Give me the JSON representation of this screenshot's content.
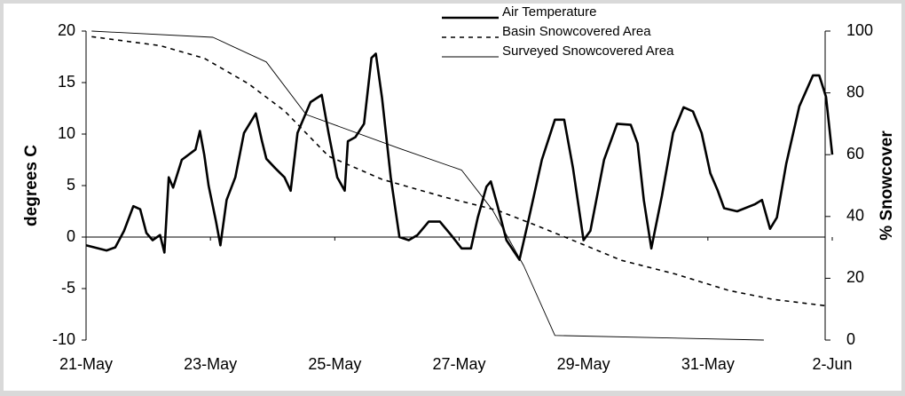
{
  "chart_data": {
    "type": "line",
    "ylabel": "degrees C",
    "y2label": "% Snowcover",
    "xlim": [
      0,
      12
    ],
    "xticks": [
      {
        "value": 0,
        "label": "21-May"
      },
      {
        "value": 2,
        "label": "23-May"
      },
      {
        "value": 4,
        "label": "25-May"
      },
      {
        "value": 6,
        "label": "27-May"
      },
      {
        "value": 8,
        "label": "29-May"
      },
      {
        "value": 10,
        "label": "31-May"
      },
      {
        "value": 12,
        "label": "2-Jun"
      }
    ],
    "ylim": [
      -10,
      20
    ],
    "yticks": [
      -10,
      -5,
      0,
      5,
      10,
      15,
      20
    ],
    "y2lim": [
      0,
      100
    ],
    "y2ticks": [
      0,
      20,
      40,
      60,
      80,
      100
    ],
    "legend": "top",
    "series": [
      {
        "name": "Air Temperature",
        "color": "#000000",
        "style": "solid",
        "width": 2.6,
        "x": [
          0,
          0.33,
          0.47,
          0.61,
          0.76,
          0.87,
          0.97,
          1.07,
          1.19,
          1.26,
          1.33,
          1.4,
          1.54,
          1.76,
          1.83,
          1.9,
          1.97,
          2.09,
          2.16,
          2.26,
          2.4,
          2.54,
          2.73,
          2.83,
          2.9,
          3.04,
          3.19,
          3.29,
          3.4,
          3.61,
          3.79,
          3.9,
          4.04,
          4.16,
          4.21,
          4.33,
          4.47,
          4.59,
          4.66,
          4.76,
          4.9,
          5.04,
          5.19,
          5.33,
          5.51,
          5.69,
          5.87,
          6.04,
          6.19,
          6.3,
          6.44,
          6.51,
          6.61,
          6.76,
          6.97,
          7.11,
          7.33,
          7.54,
          7.69,
          7.83,
          8.0,
          8.11,
          8.33,
          8.54,
          8.76,
          8.87,
          8.97,
          9.09,
          9.26,
          9.44,
          9.61,
          9.76,
          9.9,
          10.04,
          10.16,
          10.26,
          10.47,
          10.76,
          10.87,
          11.0,
          11.11,
          11.26,
          11.47,
          11.69,
          11.79,
          11.9,
          12.0
        ],
        "values": [
          -0.8,
          -1.3,
          -1.0,
          0.6,
          3.0,
          2.7,
          0.4,
          -0.3,
          0.2,
          -1.5,
          5.8,
          4.8,
          7.5,
          8.5,
          10.3,
          8.0,
          5.0,
          1.5,
          -0.8,
          3.6,
          5.8,
          10.1,
          12.0,
          9.3,
          7.6,
          6.7,
          5.8,
          4.5,
          10.1,
          13.1,
          13.8,
          10.1,
          5.8,
          4.5,
          9.3,
          9.7,
          11.0,
          17.4,
          17.8,
          13.5,
          5.8,
          0,
          -0.3,
          0.2,
          1.5,
          1.5,
          0.2,
          -1.1,
          -1.1,
          1.9,
          4.9,
          5.4,
          3.2,
          -0.3,
          -2.2,
          1.5,
          7.5,
          11.4,
          11.4,
          6.7,
          -0.3,
          0.6,
          7.5,
          11.0,
          10.9,
          9.1,
          3.6,
          -1.1,
          4.0,
          10.1,
          12.6,
          12.2,
          10.1,
          6.2,
          4.5,
          2.8,
          2.5,
          3.2,
          3.6,
          0.8,
          1.9,
          7.1,
          12.7,
          15.7,
          15.7,
          13.6,
          8.0
        ]
      },
      {
        "name": "Basin Snowcovered Area",
        "color": "#000000",
        "style": "dashed",
        "width": 1.6,
        "axis": "y2",
        "x": [
          0.09,
          1.19,
          1.9,
          2.61,
          3.19,
          3.9,
          4.76,
          5.76,
          6.61,
          7.19,
          7.9,
          8.61,
          9.47,
          10.33,
          11.04,
          11.9
        ],
        "values": [
          98.2,
          95.3,
          91.2,
          83,
          74.2,
          59.5,
          52,
          46.3,
          42,
          37.5,
          31.7,
          25.8,
          21.4,
          16.1,
          13.2,
          11.1
        ]
      },
      {
        "name": "Surveyed Snowcovered Area",
        "color": "#000000",
        "style": "solid",
        "width": 0.9,
        "axis": "y2",
        "x": [
          0.09,
          2.04,
          2.9,
          3.54,
          5.04,
          6.04,
          6.54,
          7.04,
          7.54,
          10.9
        ],
        "values": [
          100,
          98,
          90,
          73,
          62,
          55,
          42,
          24,
          1.5,
          0
        ]
      }
    ]
  }
}
